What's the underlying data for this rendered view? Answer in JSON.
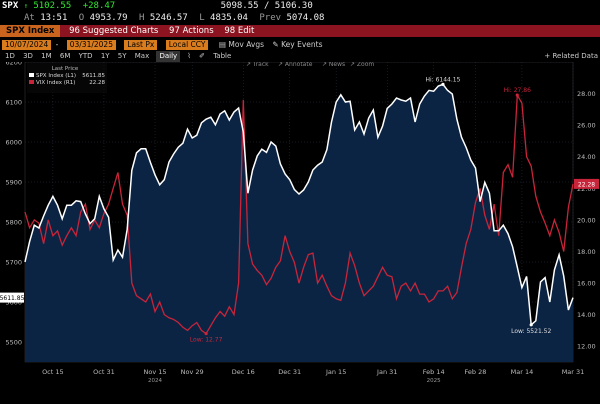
{
  "quote": {
    "ticker": "SPX",
    "arrow": "↑",
    "last": "5102.55",
    "change": "+28.47",
    "bid_ask": "5098.55 / 5106.30",
    "at_label": "At",
    "time": "13:51",
    "open_label": "O",
    "open": "4953.79",
    "high_label": "H",
    "high": "5246.57",
    "low_label": "L",
    "low": "4835.04",
    "prev_label": "Prev",
    "prev": "5074.08"
  },
  "function_bar": {
    "security": "SPX Index",
    "suggested": "Suggested Charts",
    "actions": "Actions",
    "edit": "Edit"
  },
  "controls": {
    "start_date": "10/07/2024",
    "end_date": "03/31/2025",
    "field": "Last Px",
    "currency": "Local CCY",
    "mov_avgs": "Mov Avgs",
    "key_events": "Key Events",
    "related": "Related Data"
  },
  "periods": {
    "items": [
      "1D",
      "3D",
      "1M",
      "6M",
      "YTD",
      "1Y",
      "5Y",
      "Max"
    ],
    "frequency": "Daily",
    "table": "Table"
  },
  "tools": {
    "track": "Track",
    "annotate": "Annotate",
    "news": "News",
    "zoom": "Zoom"
  },
  "colors": {
    "spx": "#ffffff",
    "vix": "#c8243a",
    "area": "#0c2444",
    "accent": "#d87c1e"
  },
  "chart_data": {
    "type": "line",
    "legend_header": "Last Price",
    "legend": [
      {
        "name": "SPX Index (L1)",
        "value": "5611.85"
      },
      {
        "name": "VIX Index (R1)",
        "value": "22.28"
      }
    ],
    "left_axis": {
      "min": 5450,
      "max": 6200,
      "ticks": [
        "5500",
        "5600",
        "5700",
        "5800",
        "5900",
        "6000",
        "6100",
        "6200"
      ]
    },
    "right_axis": {
      "min": 11,
      "max": 30,
      "ticks": [
        "12.00",
        "14.00",
        "16.00",
        "18.00",
        "20.00",
        "22.00",
        "24.00",
        "26.00",
        "28.00"
      ]
    },
    "x_ticks": [
      {
        "label": "Oct 15",
        "i": 6
      },
      {
        "label": "Oct 31",
        "i": 17
      },
      {
        "label": "Nov 15",
        "i": 28
      },
      {
        "label": "Nov 29",
        "i": 36
      },
      {
        "label": "Dec 16",
        "i": 47
      },
      {
        "label": "Dec 31",
        "i": 57
      },
      {
        "label": "Jan 15",
        "i": 67
      },
      {
        "label": "Jan 31",
        "i": 78
      },
      {
        "label": "Feb 14",
        "i": 88
      },
      {
        "label": "Feb 28",
        "i": 97
      },
      {
        "label": "Mar 14",
        "i": 107
      },
      {
        "label": "Mar 31",
        "i": 118
      }
    ],
    "year_labels": [
      {
        "label": "2024",
        "i": 28
      },
      {
        "label": "2025",
        "i": 88
      }
    ],
    "spx": [
      5700,
      5751,
      5792,
      5785,
      5815,
      5842,
      5864,
      5842,
      5808,
      5842,
      5842,
      5853,
      5851,
      5820,
      5796,
      5808,
      5864,
      5833,
      5812,
      5705,
      5730,
      5712,
      5782,
      5929,
      5973,
      5983,
      5983,
      5949,
      5918,
      5893,
      5906,
      5950,
      5970,
      5987,
      5997,
      6032,
      6010,
      6017,
      6048,
      6057,
      6062,
      6043,
      6070,
      6078,
      6055,
      6075,
      6085,
      6025,
      5872,
      5930,
      5965,
      5982,
      5974,
      6000,
      5990,
      5945,
      5920,
      5906,
      5881,
      5870,
      5880,
      5900,
      5930,
      5942,
      5950,
      5981,
      6050,
      6100,
      6118,
      6100,
      6102,
      6030,
      6050,
      6020,
      6060,
      6080,
      6012,
      6040,
      6084,
      6095,
      6110,
      6105,
      6102,
      6110,
      6050,
      6095,
      6115,
      6129,
      6127,
      6140,
      6144,
      6129,
      6120,
      6057,
      6012,
      5986,
      5955,
      5935,
      5851,
      5899,
      5872,
      5778,
      5778,
      5792,
      5771,
      5738,
      5687,
      5636,
      5664,
      5543,
      5553,
      5650,
      5661,
      5600,
      5680,
      5718,
      5665,
      5580,
      5611
    ],
    "vix": [
      20.5,
      19.5,
      20.0,
      19.8,
      18.5,
      20.0,
      19.0,
      19.3,
      18.4,
      19.0,
      19.5,
      19.0,
      20.5,
      21.0,
      19.4,
      20.0,
      19.5,
      20.4,
      21.0,
      22.0,
      23.0,
      21.0,
      20.3,
      16.0,
      15.2,
      15.0,
      14.8,
      15.3,
      14.2,
      14.8,
      14.0,
      13.8,
      13.7,
      13.5,
      13.2,
      13.0,
      13.3,
      13.5,
      13.0,
      12.8,
      13.3,
      13.8,
      14.2,
      13.9,
      14.5,
      14.0,
      16.0,
      27.6,
      18.5,
      17.2,
      16.8,
      16.5,
      15.9,
      16.3,
      17.0,
      17.4,
      19.0,
      18.0,
      17.3,
      16.0,
      17.0,
      17.8,
      17.9,
      16.0,
      16.5,
      15.8,
      15.2,
      15.0,
      14.9,
      16.0,
      17.9,
      17.1,
      16.0,
      15.2,
      15.5,
      15.8,
      16.4,
      17.0,
      16.5,
      16.4,
      15.0,
      15.8,
      16.0,
      15.5,
      16.0,
      15.3,
      15.3,
      14.8,
      15.0,
      15.5,
      15.5,
      15.8,
      15.0,
      15.4,
      17.0,
      18.5,
      19.4,
      21.1,
      22.0,
      20.3,
      19.4,
      21.0,
      19.0,
      23.0,
      23.5,
      22.7,
      27.9,
      27.4,
      24.0,
      23.4,
      21.5,
      20.5,
      19.8,
      19.0,
      20.0,
      19.2,
      18.0,
      20.8,
      22.28
    ],
    "annotations": [
      {
        "text": "Hi: 6144.15",
        "series": "spx",
        "i": 90
      },
      {
        "text": "Low: 5521.52",
        "series": "spx",
        "i": 109
      },
      {
        "text": "Hi: 27.86",
        "series": "vix",
        "i": 106
      },
      {
        "text": "Low: 12.77",
        "series": "vix",
        "i": 39
      }
    ],
    "last_tags": {
      "spx": "5611.85",
      "vix": "22.28"
    }
  }
}
